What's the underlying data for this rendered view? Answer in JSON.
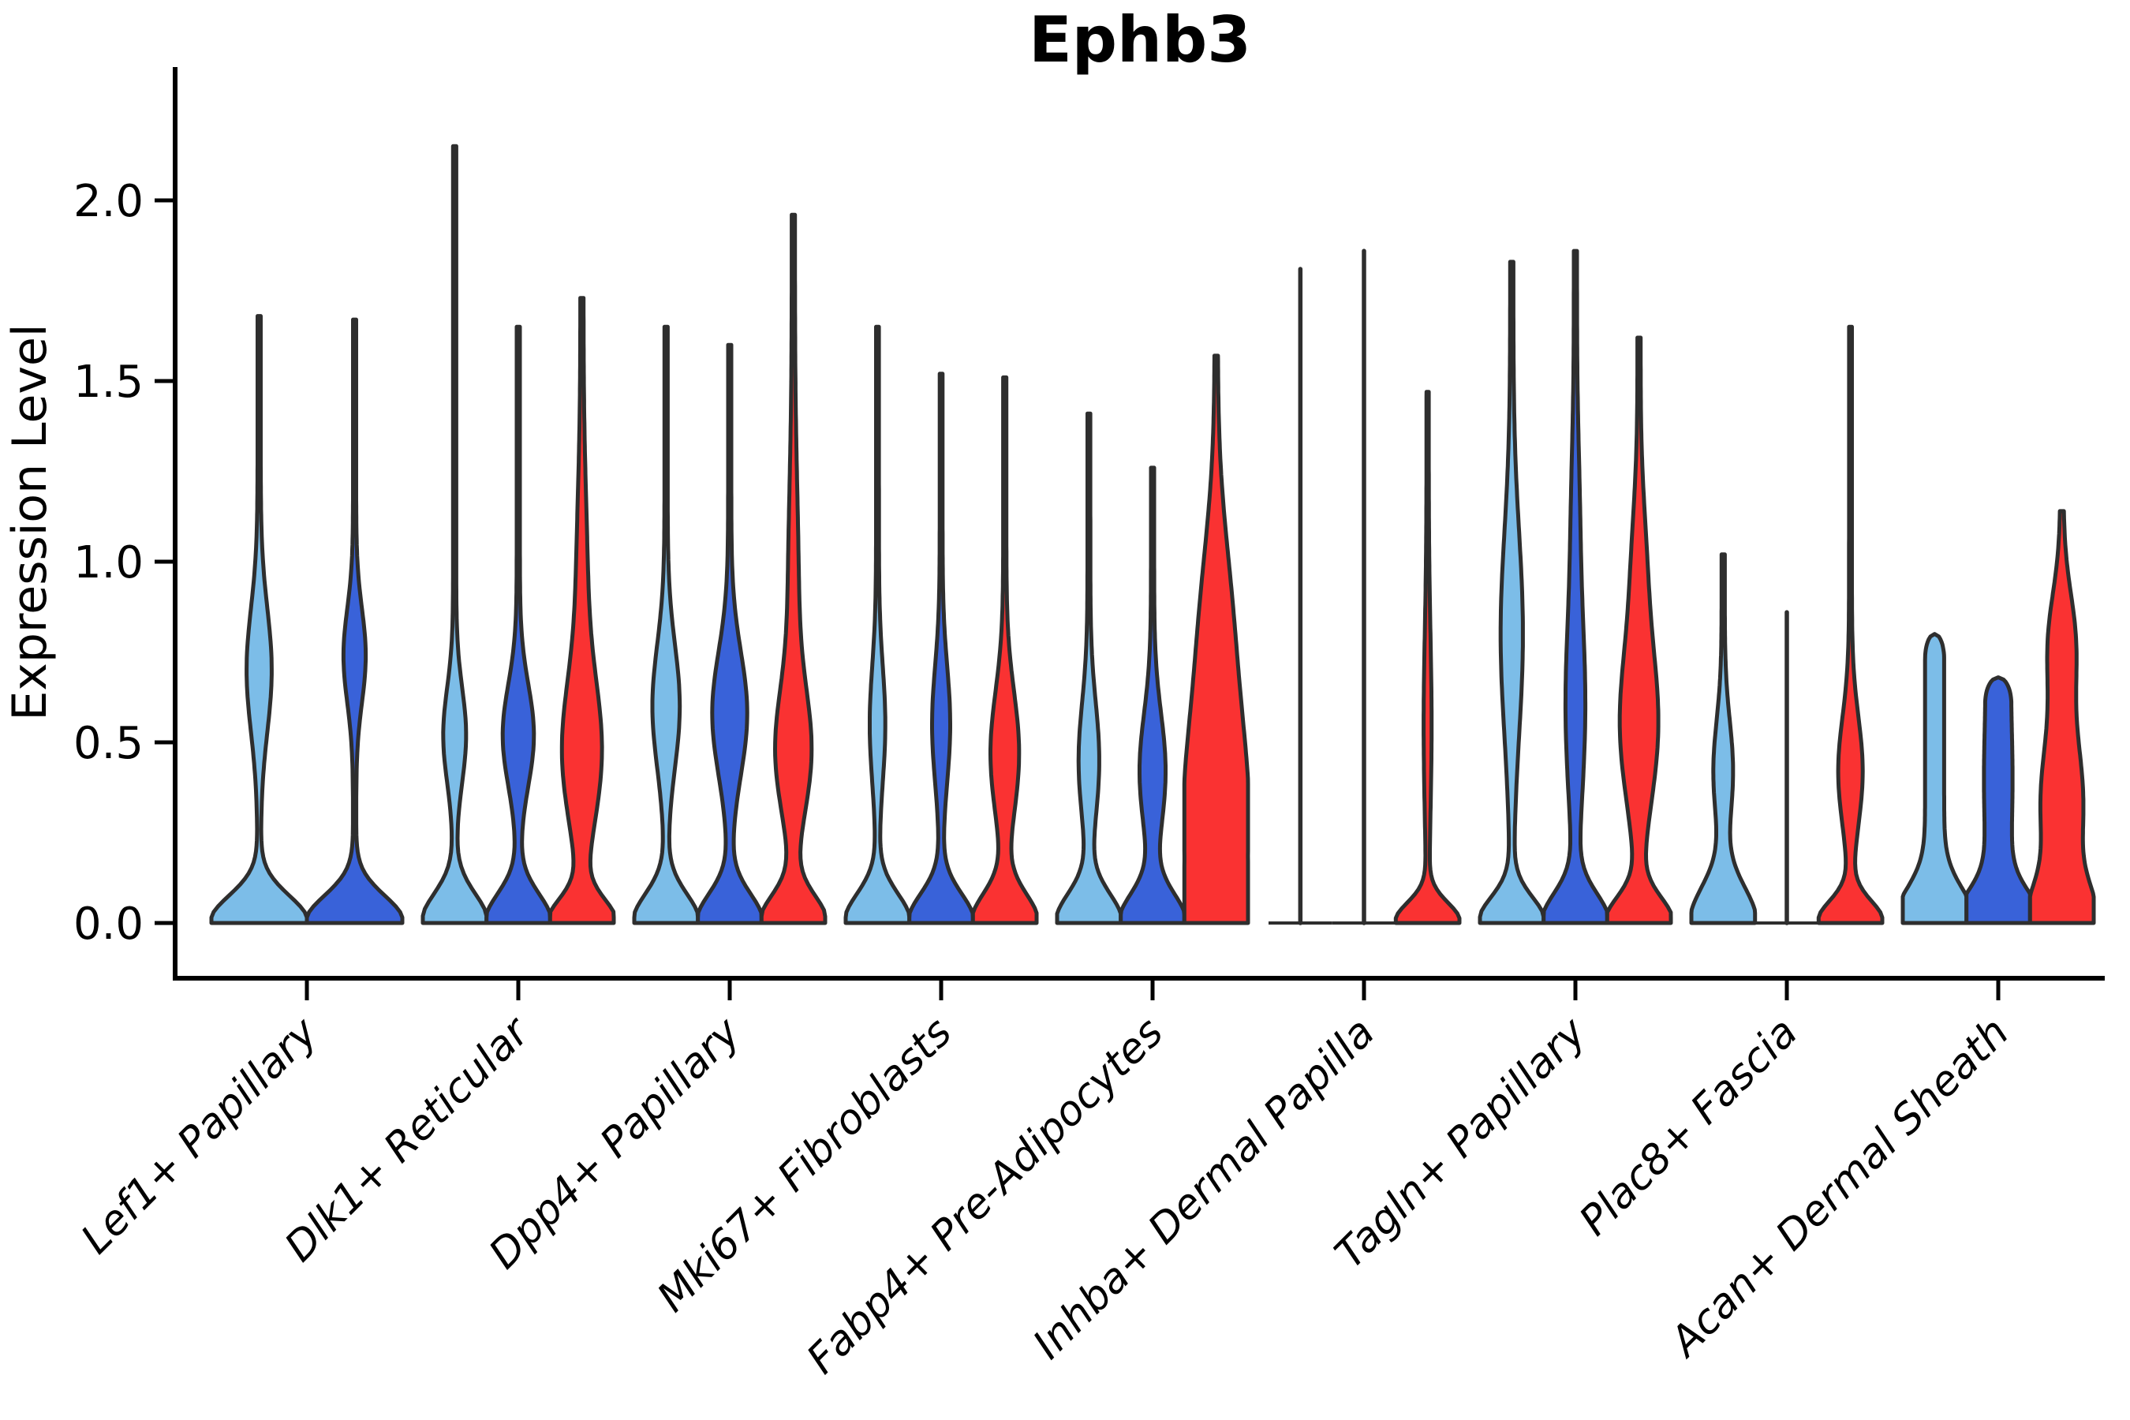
{
  "title": "Ephb3",
  "axes": {
    "ylabel": "Expression Level",
    "ytick_labels": [
      "0.0",
      "0.5",
      "1.0",
      "1.5",
      "2.0"
    ]
  },
  "colors": {
    "light_blue": "#7CBDE8",
    "dark_blue": "#3962D9",
    "red": "#FA3232",
    "outline": "#2E2E2E",
    "axis": "#000000"
  },
  "chart_data": {
    "type": "violin",
    "title": "Ephb3",
    "xlabel": "",
    "ylabel": "Expression Level",
    "yticks": [
      0.0,
      0.5,
      1.0,
      1.5,
      2.0
    ],
    "ylim": [
      -0.15,
      2.37
    ],
    "grid": false,
    "legend": "none",
    "splits": [
      "light_blue",
      "dark_blue",
      "red"
    ],
    "categories": [
      "Lef1+ Papillary",
      "Dlk1+ Reticular",
      "Dpp4+ Papillary",
      "Mki67+ Fibroblasts",
      "Fabp4+ Pre-Adipocytes",
      "Inhba+ Dermal Papilla",
      "Tagln+ Papillary",
      "Plac8+ Fascia",
      "Acan+ Dermal Sheath"
    ],
    "groups": [
      {
        "label": "Lef1+ Papillary",
        "violins": [
          {
            "split": "light_blue",
            "kind": "violin",
            "max": 1.68,
            "base": [
              1.0,
              0.075
            ],
            "bulges": [
              [
                0.7,
                0.23,
                0.17
              ]
            ],
            "neck": 0.033
          },
          {
            "split": "dark_blue",
            "kind": "violin",
            "max": 1.67,
            "base": [
              1.0,
              0.075
            ],
            "bulges": [
              [
                0.74,
                0.2,
                0.13
              ]
            ],
            "neck": 0.033
          }
        ]
      },
      {
        "label": "Dlk1+ Reticular",
        "violins": [
          {
            "split": "light_blue",
            "kind": "violin",
            "max": 2.15,
            "base": [
              1.0,
              0.08
            ],
            "bulges": [
              [
                0.52,
                0.31,
                0.13
              ]
            ],
            "neck": 0.05
          },
          {
            "split": "dark_blue",
            "kind": "violin",
            "max": 1.65,
            "base": [
              1.0,
              0.08
            ],
            "bulges": [
              [
                0.52,
                0.44,
                0.14
              ]
            ],
            "neck": 0.05
          },
          {
            "split": "red",
            "kind": "violin",
            "max": 1.73,
            "base": [
              1.0,
              0.065
            ],
            "bulges": [
              [
                0.47,
                0.56,
                0.2
              ],
              [
                0.95,
                0.12,
                0.25
              ]
            ],
            "neck": 0.05
          }
        ]
      },
      {
        "label": "Dpp4+ Papillary",
        "violins": [
          {
            "split": "light_blue",
            "kind": "violin",
            "max": 1.65,
            "base": [
              1.0,
              0.08
            ],
            "bulges": [
              [
                0.6,
                0.38,
                0.17
              ]
            ],
            "neck": 0.05
          },
          {
            "split": "dark_blue",
            "kind": "violin",
            "max": 1.6,
            "base": [
              1.0,
              0.08
            ],
            "bulges": [
              [
                0.58,
                0.5,
                0.17
              ]
            ],
            "neck": 0.05
          },
          {
            "split": "red",
            "kind": "violin",
            "max": 1.96,
            "base": [
              1.0,
              0.075
            ],
            "bulges": [
              [
                0.47,
                0.48,
                0.17
              ],
              [
                0.9,
                0.12,
                0.3
              ]
            ],
            "neck": 0.05
          }
        ]
      },
      {
        "label": "Mki67+ Fibroblasts",
        "violins": [
          {
            "split": "light_blue",
            "kind": "violin",
            "max": 1.65,
            "base": [
              1.0,
              0.08
            ],
            "bulges": [
              [
                0.55,
                0.2,
                0.16
              ]
            ],
            "neck": 0.045
          },
          {
            "split": "dark_blue",
            "kind": "violin",
            "max": 1.52,
            "base": [
              1.0,
              0.08
            ],
            "bulges": [
              [
                0.55,
                0.24,
                0.16
              ]
            ],
            "neck": 0.045
          },
          {
            "split": "red",
            "kind": "violin",
            "max": 1.51,
            "base": [
              1.0,
              0.08
            ],
            "bulges": [
              [
                0.47,
                0.4,
                0.17
              ]
            ],
            "neck": 0.05
          }
        ]
      },
      {
        "label": "Fabp4+ Pre-Adipocytes",
        "violins": [
          {
            "split": "light_blue",
            "kind": "violin",
            "max": 1.41,
            "base": [
              1.0,
              0.08
            ],
            "bulges": [
              [
                0.45,
                0.28,
                0.16
              ]
            ],
            "neck": 0.045
          },
          {
            "split": "dark_blue",
            "kind": "violin",
            "max": 1.26,
            "base": [
              1.0,
              0.08
            ],
            "bulges": [
              [
                0.42,
                0.36,
                0.16
              ]
            ],
            "neck": 0.05
          },
          {
            "split": "red",
            "kind": "violin",
            "max": 1.57,
            "base": [
              0.5,
              0.08
            ],
            "bulges": [
              [
                0.28,
                0.95,
                0.3
              ],
              [
                0.85,
                0.35,
                0.25
              ]
            ],
            "neck": 0.05
          }
        ]
      },
      {
        "label": "Inhba+ Dermal Papilla",
        "violins": [
          {
            "split": "light_blue",
            "kind": "line",
            "max": 1.81
          },
          {
            "split": "dark_blue",
            "kind": "line",
            "max": 1.86
          },
          {
            "split": "red",
            "kind": "violin",
            "max": 1.47,
            "base": [
              1.0,
              0.055
            ],
            "bulges": [
              [
                0.55,
                0.09,
                0.25
              ]
            ],
            "neck": 0.035
          }
        ]
      },
      {
        "label": "Tagln+ Papillary",
        "violins": [
          {
            "split": "light_blue",
            "kind": "violin",
            "max": 1.83,
            "base": [
              1.0,
              0.07
            ],
            "bulges": [
              [
                0.8,
                0.3,
                0.28
              ]
            ],
            "neck": 0.05
          },
          {
            "split": "dark_blue",
            "kind": "violin",
            "max": 1.86,
            "base": [
              1.0,
              0.08
            ],
            "bulges": [
              [
                0.6,
                0.26,
                0.26
              ],
              [
                1.15,
                0.07,
                0.2
              ]
            ],
            "neck": 0.05
          },
          {
            "split": "red",
            "kind": "violin",
            "max": 1.62,
            "base": [
              1.0,
              0.07
            ],
            "bulges": [
              [
                0.55,
                0.55,
                0.22
              ],
              [
                1.0,
                0.15,
                0.18
              ]
            ],
            "neck": 0.05
          }
        ]
      },
      {
        "label": "Plac8+ Fascia",
        "violins": [
          {
            "split": "light_blue",
            "kind": "violin",
            "max": 1.02,
            "base": [
              1.0,
              0.1
            ],
            "bulges": [
              [
                0.42,
                0.26,
                0.14
              ]
            ],
            "neck": 0.05
          },
          {
            "split": "dark_blue",
            "kind": "line",
            "max": 0.86
          },
          {
            "split": "red",
            "kind": "violin",
            "max": 1.65,
            "base": [
              1.0,
              0.06
            ],
            "bulges": [
              [
                0.42,
                0.34,
                0.15
              ]
            ],
            "neck": 0.045
          }
        ]
      },
      {
        "label": "Acan+ Dermal Sheath",
        "violins": [
          {
            "split": "light_blue",
            "kind": "column",
            "max": 0.8,
            "base": [
              1.0,
              0.09
            ],
            "col": 0.3,
            "cap": 0.07,
            "bulges": []
          },
          {
            "split": "dark_blue",
            "kind": "column",
            "max": 0.68,
            "base": [
              1.0,
              0.08
            ],
            "col": 0.4,
            "cap": 0.07,
            "bulges": [
              [
                0.4,
                0.05,
                0.12
              ]
            ]
          },
          {
            "split": "red",
            "kind": "violin",
            "max": 1.14,
            "base": [
              0.9,
              0.1
            ],
            "bulges": [
              [
                0.33,
                0.62,
                0.2
              ],
              [
                0.78,
                0.35,
                0.14
              ]
            ],
            "neck": 0.05
          }
        ]
      }
    ]
  }
}
